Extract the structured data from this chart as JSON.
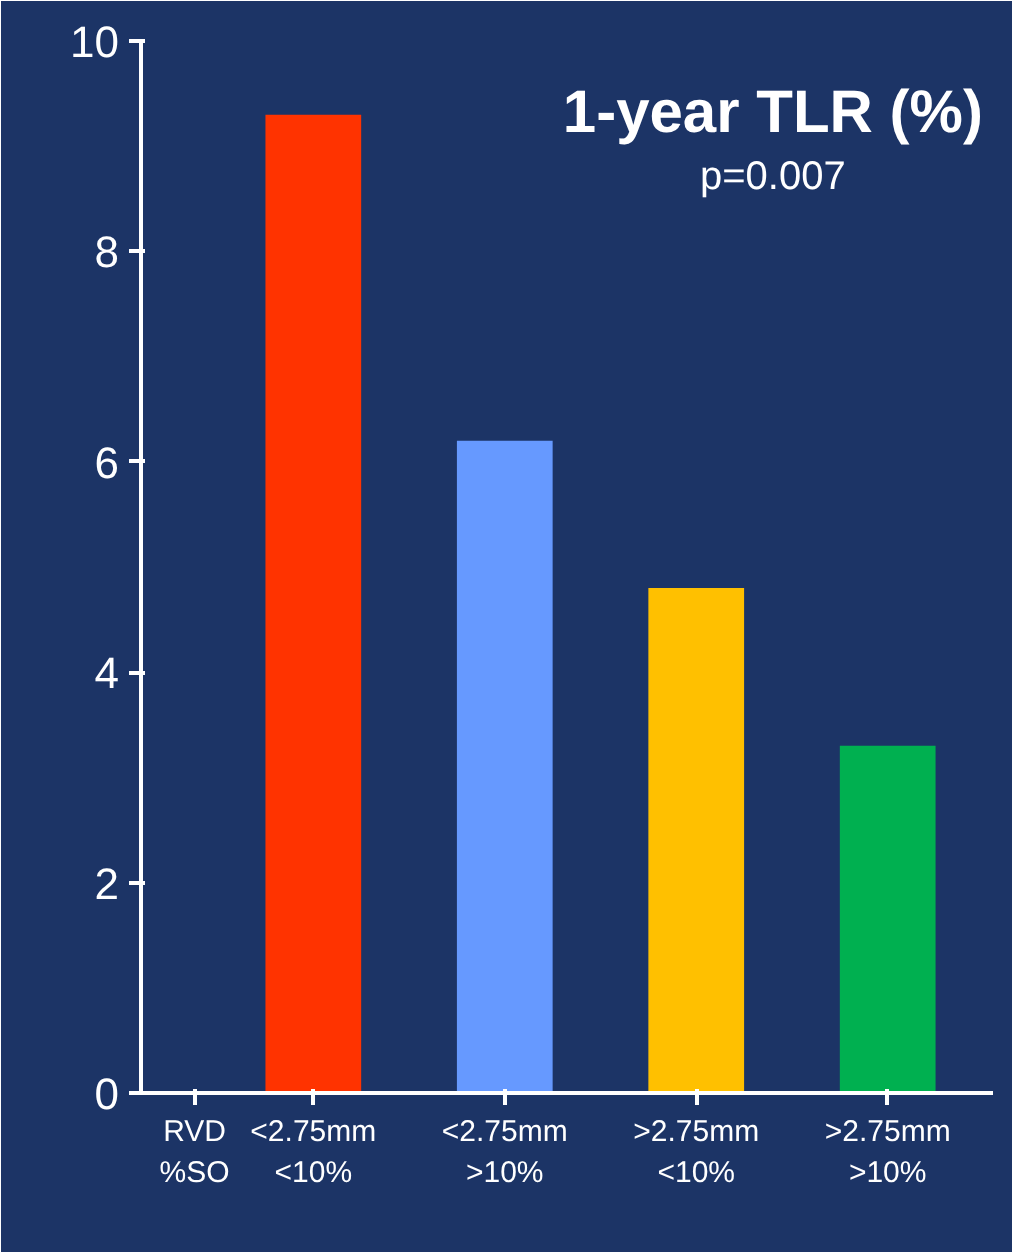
{
  "chart_data": {
    "type": "bar",
    "title": "1-year TLR (%)",
    "subtitle": "p=0.007",
    "categories": [
      "<2.75mm\n<10%",
      "<2.75mm\n>10%",
      ">2.75mm\n<10%",
      ">2.75mm\n>10%"
    ],
    "values": [
      9.3,
      6.2,
      4.8,
      3.3
    ],
    "colors": [
      "#ff3300",
      "#6699ff",
      "#ffc000",
      "#00b050"
    ],
    "annotations": [
      "RVD\n%SO"
    ],
    "ylim": [
      0,
      10
    ],
    "yticks": [
      0,
      2,
      4,
      6,
      8,
      10
    ],
    "grid": false
  }
}
